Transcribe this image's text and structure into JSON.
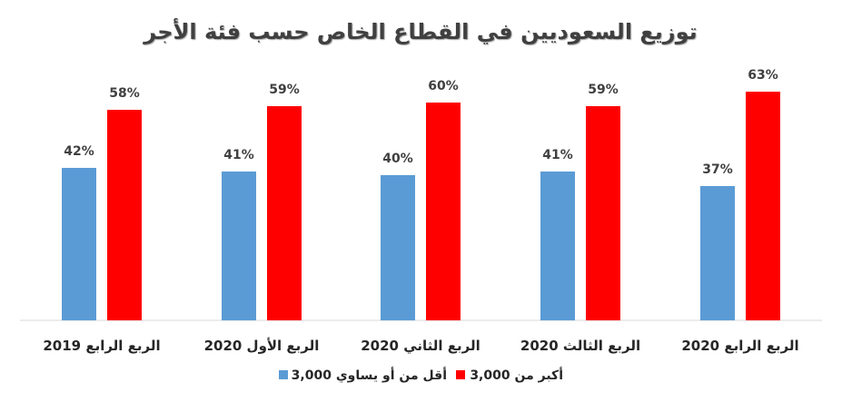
{
  "chart_data": {
    "type": "bar",
    "title": "توزيع السعوديين في القطاع الخاص حسب فئة الأجر",
    "categories": [
      "الربع الرابع 2019",
      "الربع الأول 2020",
      "الربع الثاني 2020",
      "الربع الثالث 2020",
      "الربع الرابع 2020"
    ],
    "series": [
      {
        "name": "أقل من أو يساوي 3,000",
        "color": "#5B9BD5",
        "values": [
          42,
          41,
          40,
          41,
          37
        ],
        "labels": [
          "42%",
          "41%",
          "40%",
          "41%",
          "37%"
        ]
      },
      {
        "name": "أكبر من 3,000",
        "color": "#FF0000",
        "values": [
          58,
          59,
          60,
          59,
          63
        ],
        "labels": [
          "58%",
          "59%",
          "60%",
          "59%",
          "63%"
        ]
      }
    ],
    "ylim": [
      0,
      70
    ],
    "unit": "%",
    "grid": false,
    "legend": "bottom"
  }
}
